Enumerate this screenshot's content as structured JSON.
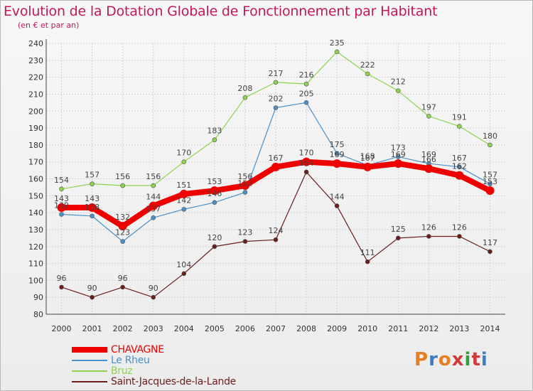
{
  "title": "Evolution de la Dotation Globale de Fonctionnement par Habitant",
  "subtitle": "(en € et par an)",
  "logo": {
    "text": "Proxiti",
    "colors": [
      "#e67e22",
      "#3a7dc2",
      "#e67e22",
      "#d23a3a",
      "#3a9d3a",
      "#d23a3a",
      "#3a7dc2"
    ]
  },
  "chart_data": {
    "type": "line",
    "x": [
      "2000",
      "2001",
      "2002",
      "2003",
      "2004",
      "2005",
      "2006",
      "2007",
      "2008",
      "2009",
      "2010",
      "2011",
      "2012",
      "2013",
      "2014"
    ],
    "ylim": [
      80,
      240
    ],
    "yticks": [
      80,
      90,
      100,
      110,
      120,
      130,
      140,
      150,
      160,
      170,
      180,
      190,
      200,
      210,
      220,
      230,
      240
    ],
    "grid": true,
    "legend_position": "bottom-left",
    "series": [
      {
        "name": "Saint-Jacques-de-la-Lande",
        "color": "#6b1c1c",
        "line_width": 1.2,
        "marker_radius": 3,
        "values": [
          96,
          90,
          96,
          90,
          104,
          120,
          123,
          124,
          164,
          144,
          111,
          125,
          126,
          126,
          117
        ],
        "labels": [
          "96",
          "90",
          "96",
          "90",
          "104",
          "120",
          "123",
          "124",
          "164",
          "144",
          "111",
          "125",
          "126",
          "126",
          "117"
        ]
      },
      {
        "name": "Bruz",
        "color": "#8ed34f",
        "line_width": 1.2,
        "marker_radius": 3,
        "values": [
          154,
          157,
          156,
          156,
          170,
          183,
          208,
          217,
          216,
          235,
          222,
          212,
          197,
          191,
          180
        ],
        "labels": [
          "154",
          "157",
          "156",
          "156",
          "170",
          "183",
          "208",
          "217",
          "216",
          "235",
          "222",
          "212",
          "197",
          "191",
          "180"
        ]
      },
      {
        "name": "Le Rheu",
        "color": "#4a90c9",
        "line_width": 1.2,
        "marker_radius": 3,
        "values": [
          139,
          138,
          123,
          137,
          142,
          146,
          152,
          202,
          205,
          175,
          168,
          173,
          169,
          167,
          157
        ],
        "labels": [
          "139",
          "138",
          "123",
          "137",
          "142",
          "146",
          "152",
          "202",
          "205",
          "175",
          "168",
          "173",
          "169",
          "167",
          "157"
        ]
      },
      {
        "name": "CHAVAGNE",
        "color": "#ee0000",
        "line_width": 8,
        "marker_radius": 6,
        "values": [
          143,
          143,
          132,
          144,
          151,
          153,
          156,
          167,
          170,
          169,
          167,
          169,
          166,
          162,
          153
        ],
        "labels": [
          "143",
          "143",
          "132",
          "144",
          "151",
          "153",
          "156",
          "167",
          "170",
          "169",
          "167",
          "169",
          "166",
          "162",
          "153"
        ]
      }
    ],
    "legend": [
      {
        "name": "CHAVAGNE",
        "color": "#ee0000",
        "swatch_weight": "thick"
      },
      {
        "name": "Le Rheu",
        "color": "#4a90c9",
        "swatch_weight": "thin"
      },
      {
        "name": "Bruz",
        "color": "#8ed34f",
        "swatch_weight": "thin"
      },
      {
        "name": "Saint-Jacques-de-la-Lande",
        "color": "#6b1c1c",
        "swatch_weight": "thin"
      }
    ]
  }
}
